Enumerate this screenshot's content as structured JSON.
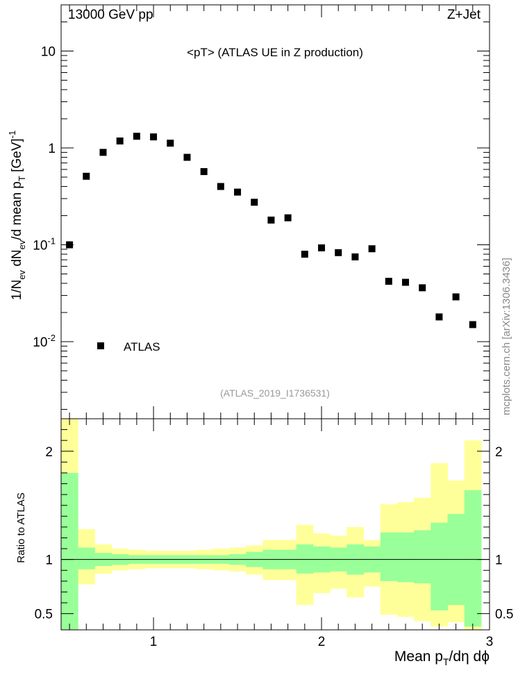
{
  "header": {
    "energy_label": "13000 GeV pp",
    "process_label": "Z+Jet"
  },
  "side_label": "mcplots.cern.ch [arXiv:1306.3436]",
  "chart_data": [
    {
      "type": "scatter",
      "title": "<pT>  (ATLAS UE in Z production)",
      "analysis_id": "(ATLAS_2019_I1736531)",
      "xlabel": "Mean p_T/dη dφ",
      "ylabel": "1/N_ev dN_ev/d mean p_T [GeV]^-1",
      "yscale": "log",
      "xlim": [
        0.45,
        3.0
      ],
      "ylim": [
        0.0016,
        30
      ],
      "yticks": [
        "10^-2",
        "10^-1",
        "1",
        "10"
      ],
      "legend": {
        "position": "left",
        "entries": [
          "ATLAS"
        ]
      },
      "series": [
        {
          "name": "ATLAS",
          "x": [
            0.5,
            0.6,
            0.7,
            0.8,
            0.9,
            1.0,
            1.1,
            1.2,
            1.3,
            1.4,
            1.5,
            1.6,
            1.7,
            1.8,
            1.9,
            2.0,
            2.1,
            2.2,
            2.3,
            2.4,
            2.5,
            2.6,
            2.7,
            2.8,
            2.9
          ],
          "y": [
            0.1,
            0.51,
            0.9,
            1.18,
            1.32,
            1.3,
            1.12,
            0.8,
            0.57,
            0.4,
            0.35,
            0.275,
            0.18,
            0.19,
            0.08,
            0.093,
            0.083,
            0.075,
            0.091,
            0.042,
            0.041,
            0.036,
            0.018,
            0.029,
            0.015
          ]
        }
      ]
    },
    {
      "type": "area",
      "ylabel": "Ratio to ATLAS",
      "xlim": [
        0.45,
        3.0
      ],
      "ylim": [
        0.35,
        2.3
      ],
      "xticks": [
        "1",
        "2",
        "3"
      ],
      "yticks": [
        "0.5",
        "1",
        "2"
      ],
      "bin_edges": [
        0.45,
        0.55,
        0.65,
        0.75,
        0.85,
        0.95,
        1.05,
        1.15,
        1.25,
        1.35,
        1.45,
        1.55,
        1.65,
        1.75,
        1.85,
        1.95,
        2.05,
        2.15,
        2.25,
        2.35,
        2.45,
        2.55,
        2.65,
        2.75,
        2.85,
        2.95
      ],
      "yellow_band": {
        "upper": [
          2.3,
          1.28,
          1.14,
          1.1,
          1.09,
          1.08,
          1.08,
          1.08,
          1.09,
          1.1,
          1.11,
          1.13,
          1.18,
          1.18,
          1.32,
          1.24,
          1.22,
          1.3,
          1.18,
          1.51,
          1.53,
          1.57,
          1.89,
          1.73,
          2.1
        ],
        "lower": [
          0.35,
          0.77,
          0.87,
          0.9,
          0.91,
          0.92,
          0.92,
          0.92,
          0.91,
          0.9,
          0.89,
          0.86,
          0.81,
          0.81,
          0.58,
          0.69,
          0.73,
          0.65,
          0.75,
          0.49,
          0.47,
          0.43,
          0.38,
          0.42,
          0.35
        ]
      },
      "green_band": {
        "upper": [
          1.8,
          1.11,
          1.06,
          1.05,
          1.04,
          1.04,
          1.04,
          1.04,
          1.04,
          1.04,
          1.05,
          1.07,
          1.09,
          1.09,
          1.14,
          1.12,
          1.11,
          1.14,
          1.12,
          1.25,
          1.25,
          1.27,
          1.34,
          1.42,
          1.64
        ],
        "lower": [
          0.35,
          0.91,
          0.94,
          0.95,
          0.96,
          0.96,
          0.96,
          0.96,
          0.96,
          0.96,
          0.95,
          0.93,
          0.91,
          0.91,
          0.87,
          0.88,
          0.89,
          0.86,
          0.88,
          0.8,
          0.79,
          0.78,
          0.53,
          0.58,
          0.38
        ]
      },
      "colors": {
        "yellow": "#ffff99",
        "green": "#99ff99",
        "reference_line": "#000000"
      }
    }
  ]
}
